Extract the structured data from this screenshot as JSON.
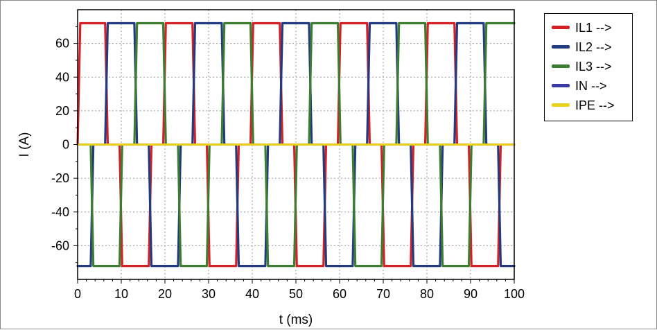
{
  "chart_data": {
    "type": "line",
    "title": "",
    "xlabel": "t (ms)",
    "ylabel": "I (A)",
    "xlim": [
      0,
      100
    ],
    "ylim": [
      -80,
      80
    ],
    "x_ticks": [
      0,
      10,
      20,
      30,
      40,
      50,
      60,
      70,
      80,
      90,
      100
    ],
    "y_ticks": [
      60,
      40,
      20,
      0,
      -20,
      -40,
      -60
    ],
    "grid": true,
    "legend_position": "right",
    "series": [
      {
        "name": "IL1 -->",
        "color": "#d42128",
        "points": [
          [
            0,
            0
          ],
          [
            0.6,
            72
          ],
          [
            6.3,
            72
          ],
          [
            6.9,
            0
          ],
          [
            9.6,
            0
          ],
          [
            10.2,
            -72
          ],
          [
            16.3,
            -72
          ],
          [
            16.9,
            0
          ],
          [
            19.6,
            0
          ],
          [
            20.2,
            72
          ],
          [
            26.3,
            72
          ],
          [
            26.9,
            0
          ],
          [
            29.6,
            0
          ],
          [
            30.2,
            -72
          ],
          [
            36.3,
            -72
          ],
          [
            36.9,
            0
          ],
          [
            39.6,
            0
          ],
          [
            40.2,
            72
          ],
          [
            46.3,
            72
          ],
          [
            46.9,
            0
          ],
          [
            49.6,
            0
          ],
          [
            50.2,
            -72
          ],
          [
            56.3,
            -72
          ],
          [
            56.9,
            0
          ],
          [
            59.6,
            0
          ],
          [
            60.2,
            72
          ],
          [
            66.3,
            72
          ],
          [
            66.9,
            0
          ],
          [
            69.6,
            0
          ],
          [
            70.2,
            -72
          ],
          [
            76.3,
            -72
          ],
          [
            76.9,
            0
          ],
          [
            79.6,
            0
          ],
          [
            80.2,
            72
          ],
          [
            86.3,
            72
          ],
          [
            86.9,
            0
          ],
          [
            89.6,
            0
          ],
          [
            90.2,
            -72
          ],
          [
            96.3,
            -72
          ],
          [
            96.9,
            0
          ],
          [
            100,
            0
          ]
        ]
      },
      {
        "name": "IL2 -->",
        "color": "#233a7e",
        "points": [
          [
            0,
            -72
          ],
          [
            3.0,
            -72
          ],
          [
            3.6,
            0
          ],
          [
            6.3,
            0
          ],
          [
            6.9,
            72
          ],
          [
            13.0,
            72
          ],
          [
            13.6,
            0
          ],
          [
            16.3,
            0
          ],
          [
            16.9,
            -72
          ],
          [
            23.0,
            -72
          ],
          [
            23.6,
            0
          ],
          [
            26.3,
            0
          ],
          [
            26.9,
            72
          ],
          [
            33.0,
            72
          ],
          [
            33.6,
            0
          ],
          [
            36.3,
            0
          ],
          [
            36.9,
            -72
          ],
          [
            43.0,
            -72
          ],
          [
            43.6,
            0
          ],
          [
            46.3,
            0
          ],
          [
            46.9,
            72
          ],
          [
            53.0,
            72
          ],
          [
            53.6,
            0
          ],
          [
            56.3,
            0
          ],
          [
            56.9,
            -72
          ],
          [
            63.0,
            -72
          ],
          [
            63.6,
            0
          ],
          [
            66.3,
            0
          ],
          [
            66.9,
            72
          ],
          [
            73.0,
            72
          ],
          [
            73.6,
            0
          ],
          [
            76.3,
            0
          ],
          [
            76.9,
            -72
          ],
          [
            83.0,
            -72
          ],
          [
            83.6,
            0
          ],
          [
            86.3,
            0
          ],
          [
            86.9,
            72
          ],
          [
            93.0,
            72
          ],
          [
            93.6,
            0
          ],
          [
            96.3,
            0
          ],
          [
            96.9,
            -72
          ],
          [
            100,
            -72
          ]
        ]
      },
      {
        "name": "IL3 -->",
        "color": "#3d7d32",
        "points": [
          [
            0,
            0
          ],
          [
            3.0,
            0
          ],
          [
            3.6,
            -72
          ],
          [
            9.6,
            -72
          ],
          [
            10.2,
            0
          ],
          [
            13.0,
            0
          ],
          [
            13.6,
            72
          ],
          [
            19.6,
            72
          ],
          [
            20.2,
            0
          ],
          [
            23.0,
            0
          ],
          [
            23.6,
            -72
          ],
          [
            29.6,
            -72
          ],
          [
            30.2,
            0
          ],
          [
            33.0,
            0
          ],
          [
            33.6,
            72
          ],
          [
            39.6,
            72
          ],
          [
            40.2,
            0
          ],
          [
            43.0,
            0
          ],
          [
            43.6,
            -72
          ],
          [
            49.6,
            -72
          ],
          [
            50.2,
            0
          ],
          [
            53.0,
            0
          ],
          [
            53.6,
            72
          ],
          [
            59.6,
            72
          ],
          [
            60.2,
            0
          ],
          [
            63.0,
            0
          ],
          [
            63.6,
            -72
          ],
          [
            69.6,
            -72
          ],
          [
            70.2,
            0
          ],
          [
            73.0,
            0
          ],
          [
            73.6,
            72
          ],
          [
            79.6,
            72
          ],
          [
            80.2,
            0
          ],
          [
            83.0,
            0
          ],
          [
            83.6,
            -72
          ],
          [
            89.6,
            -72
          ],
          [
            90.2,
            0
          ],
          [
            93.0,
            0
          ],
          [
            93.6,
            72
          ],
          [
            100,
            72
          ]
        ]
      },
      {
        "name": "IN -->",
        "color": "#3b3ba6",
        "points": [
          [
            0,
            0
          ],
          [
            100,
            0
          ]
        ]
      },
      {
        "name": "IPE -->",
        "color": "#e8d21a",
        "points": [
          [
            0,
            0
          ],
          [
            100,
            0
          ]
        ]
      }
    ]
  }
}
